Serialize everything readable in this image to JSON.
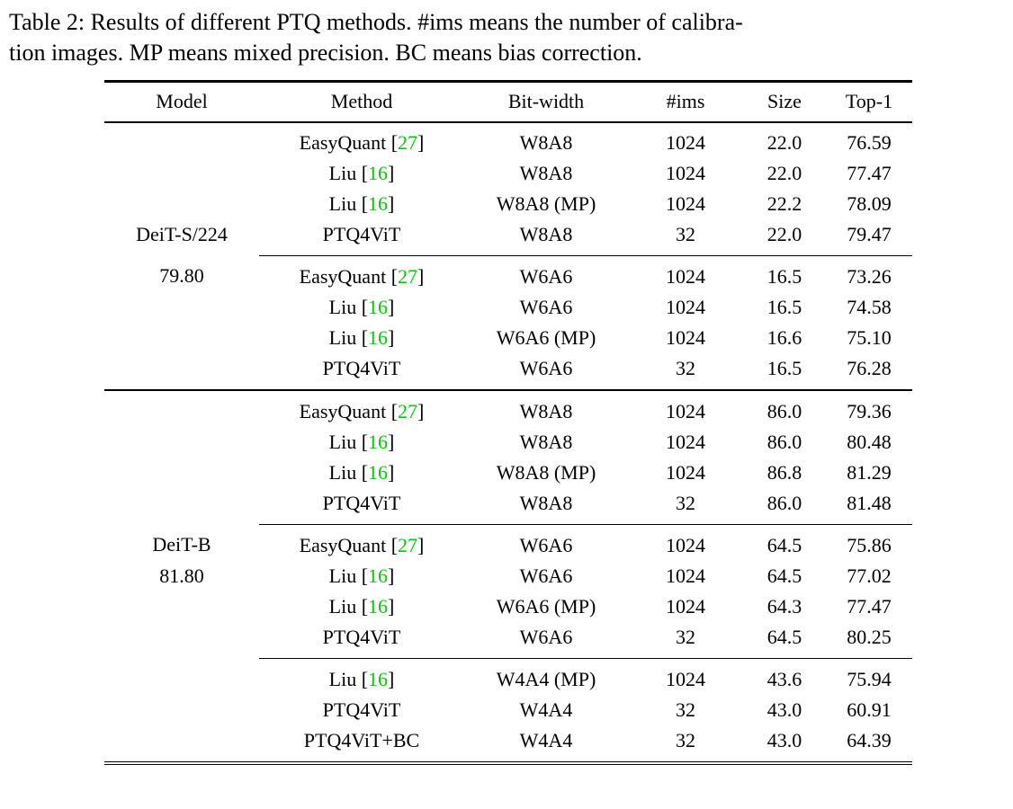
{
  "caption": {
    "line1": "Table 2: Results of different PTQ methods. #ims means the number of calibra-",
    "line2": "tion images. MP means mixed precision. BC means bias correction."
  },
  "table": {
    "headers": [
      "Model",
      "Method",
      "Bit-width",
      "#ims",
      "Size",
      "Top-1"
    ],
    "citation_color": "#00cc00",
    "groups": [
      {
        "model_label": "DeiT-S/224",
        "model_baseline": "79.80",
        "blocks": [
          {
            "rows": [
              {
                "model": "",
                "method": "EasyQuant",
                "cite": "27",
                "bitwidth": "W8A8",
                "ims": "1024",
                "size": "22.0",
                "top1": "76.59",
                "bold": false
              },
              {
                "model": "",
                "method": "Liu",
                "cite": "16",
                "bitwidth": "W8A8",
                "ims": "1024",
                "size": "22.0",
                "top1": "77.47",
                "bold": false
              },
              {
                "model": "",
                "method": "Liu",
                "cite": "16",
                "bitwidth": "W8A8 (MP)",
                "ims": "1024",
                "size": "22.2",
                "top1": "78.09",
                "bold": false
              },
              {
                "model": "DeiT-S/224",
                "method": "PTQ4ViT",
                "cite": "",
                "bitwidth": "W8A8",
                "ims": "32",
                "size": "22.0",
                "top1": "79.47",
                "bold": true
              }
            ]
          },
          {
            "rows": [
              {
                "model": "79.80",
                "method": "EasyQuant",
                "cite": "27",
                "bitwidth": "W6A6",
                "ims": "1024",
                "size": "16.5",
                "top1": "73.26",
                "bold": false
              },
              {
                "model": "",
                "method": "Liu",
                "cite": "16",
                "bitwidth": "W6A6",
                "ims": "1024",
                "size": "16.5",
                "top1": "74.58",
                "bold": false
              },
              {
                "model": "",
                "method": "Liu",
                "cite": "16",
                "bitwidth": "W6A6 (MP)",
                "ims": "1024",
                "size": "16.6",
                "top1": "75.10",
                "bold": false
              },
              {
                "model": "",
                "method": "PTQ4ViT",
                "cite": "",
                "bitwidth": "W6A6",
                "ims": "32",
                "size": "16.5",
                "top1": "76.28",
                "bold": true
              }
            ]
          }
        ]
      },
      {
        "model_label": "DeiT-B",
        "model_baseline": "81.80",
        "blocks": [
          {
            "rows": [
              {
                "model": "",
                "method": "EasyQuant",
                "cite": "27",
                "bitwidth": "W8A8",
                "ims": "1024",
                "size": "86.0",
                "top1": "79.36",
                "bold": false
              },
              {
                "model": "",
                "method": "Liu",
                "cite": "16",
                "bitwidth": "W8A8",
                "ims": "1024",
                "size": "86.0",
                "top1": "80.48",
                "bold": false
              },
              {
                "model": "",
                "method": "Liu",
                "cite": "16",
                "bitwidth": "W8A8 (MP)",
                "ims": "1024",
                "size": "86.8",
                "top1": "81.29",
                "bold": false
              },
              {
                "model": "",
                "method": "PTQ4ViT",
                "cite": "",
                "bitwidth": "W8A8",
                "ims": "32",
                "size": "86.0",
                "top1": "81.48",
                "bold": true
              }
            ]
          },
          {
            "rows": [
              {
                "model": "DeiT-B",
                "method": "EasyQuant",
                "cite": "27",
                "bitwidth": "W6A6",
                "ims": "1024",
                "size": "64.5",
                "top1": "75.86",
                "bold": false
              },
              {
                "model": "81.80",
                "method": "Liu",
                "cite": "16",
                "bitwidth": "W6A6",
                "ims": "1024",
                "size": "64.5",
                "top1": "77.02",
                "bold": false
              },
              {
                "model": "",
                "method": "Liu",
                "cite": "16",
                "bitwidth": "W6A6 (MP)",
                "ims": "1024",
                "size": "64.3",
                "top1": "77.47",
                "bold": false
              },
              {
                "model": "",
                "method": "PTQ4ViT",
                "cite": "",
                "bitwidth": "W6A6",
                "ims": "32",
                "size": "64.5",
                "top1": "80.25",
                "bold": true
              }
            ]
          },
          {
            "rows": [
              {
                "model": "",
                "method": "Liu",
                "cite": "16",
                "bitwidth": "W4A4 (MP)",
                "ims": "1024",
                "size": "43.6",
                "top1": "75.94",
                "bold": true
              },
              {
                "model": "",
                "method": "PTQ4ViT",
                "cite": "",
                "bitwidth": "W4A4",
                "ims": "32",
                "size": "43.0",
                "top1": "60.91",
                "bold": false
              },
              {
                "model": "",
                "method": "PTQ4ViT+BC",
                "cite": "",
                "bitwidth": "W4A4",
                "ims": "32",
                "size": "43.0",
                "top1": "64.39",
                "bold": false
              }
            ]
          }
        ]
      }
    ]
  }
}
